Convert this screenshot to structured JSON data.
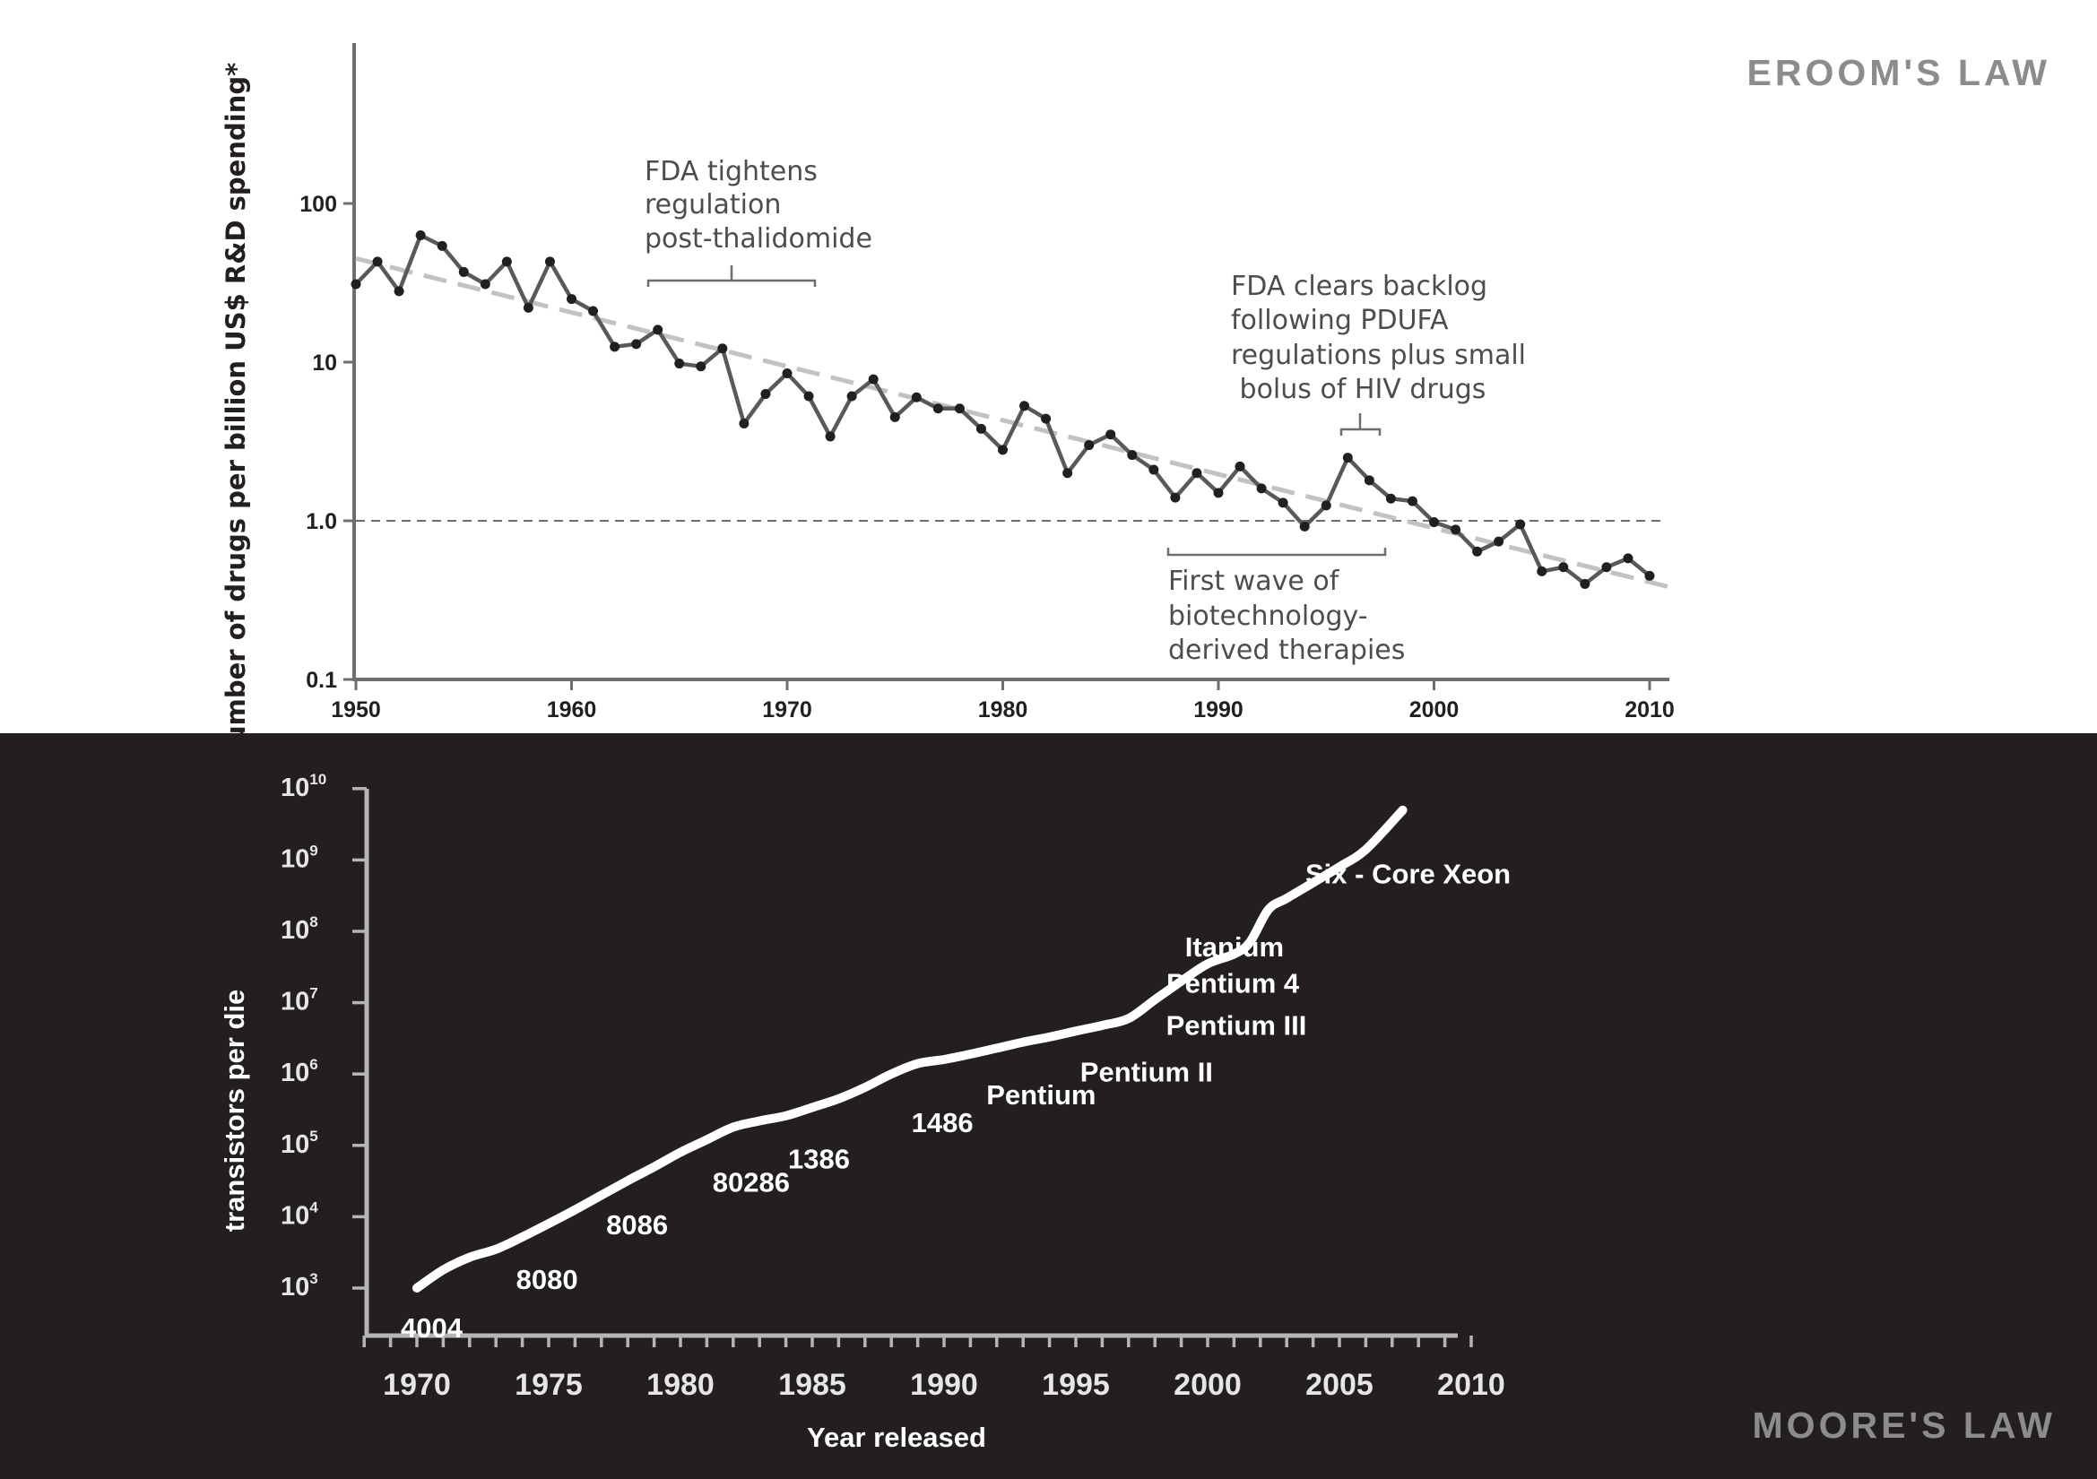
{
  "chart_data": [
    {
      "type": "line",
      "title": "EROOM'S LAW",
      "ylabel": "Number of drugs per billion US$ R&D spending*",
      "xlabel": "",
      "yscale": "log",
      "xlim": [
        1950,
        2011
      ],
      "ylim": [
        0.1,
        1000
      ],
      "xticks": [
        1950,
        1960,
        1970,
        1980,
        1990,
        2000,
        2010
      ],
      "xtick_labels": [
        "1950",
        "1960",
        "1970",
        "1980",
        "1990",
        "2000",
        "2010"
      ],
      "yticks": [
        100,
        10,
        1,
        0.1
      ],
      "ytick_labels": [
        "100",
        "10",
        "1.0",
        "0.1"
      ],
      "reference_line": {
        "y": 1.0,
        "style": "dashed"
      },
      "trend_line": {
        "x": [
          1950,
          2011
        ],
        "y": [
          45,
          0.38
        ],
        "style": "dashed"
      },
      "series": [
        {
          "name": "drugs per billion US$",
          "x": [
            1950,
            1951,
            1952,
            1953,
            1954,
            1955,
            1956,
            1957,
            1958,
            1959,
            1960,
            1961,
            1962,
            1963,
            1964,
            1965,
            1966,
            1967,
            1968,
            1969,
            1970,
            1971,
            1972,
            1973,
            1974,
            1975,
            1976,
            1977,
            1978,
            1979,
            1980,
            1981,
            1982,
            1983,
            1984,
            1985,
            1986,
            1987,
            1988,
            1989,
            1990,
            1991,
            1992,
            1993,
            1994,
            1995,
            1996,
            1997,
            1998,
            1999,
            2000,
            2001,
            2002,
            2003,
            2004,
            2005,
            2006,
            2007,
            2008,
            2009,
            2010
          ],
          "values": [
            31,
            43,
            28,
            63,
            54,
            37,
            31,
            43,
            22,
            43,
            25,
            21,
            12.5,
            13,
            16,
            9.8,
            9.4,
            12.2,
            4.1,
            6.3,
            8.5,
            6.1,
            3.4,
            6.1,
            7.8,
            4.5,
            6.0,
            5.1,
            5.1,
            3.8,
            2.8,
            5.3,
            4.4,
            2.0,
            3.0,
            3.5,
            2.6,
            2.1,
            1.4,
            2.0,
            1.5,
            2.2,
            1.6,
            1.3,
            0.92,
            1.25,
            2.5,
            1.8,
            1.38,
            1.33,
            0.98,
            0.88,
            0.64,
            0.74,
            0.95,
            0.48,
            0.51,
            0.4,
            0.51,
            0.58,
            0.45
          ]
        }
      ],
      "annotations": [
        {
          "lines": [
            "FDA tightens",
            "regulation",
            "post-thalidomide"
          ],
          "x_range": [
            1963.5,
            1971.5
          ]
        },
        {
          "lines": [
            "FDA clears backlog",
            "following PDUFA",
            "regulations plus small",
            " bolus of HIV drugs"
          ],
          "x_range": [
            1996,
            1998
          ]
        },
        {
          "lines": [
            "First wave of",
            "biotechnology-",
            "derived therapies"
          ],
          "x_range": [
            1988,
            1998
          ]
        }
      ]
    },
    {
      "type": "line",
      "title": "MOORE'S LAW",
      "xlabel": "Year released",
      "ylabel": "transistors per die",
      "yscale": "log",
      "xlim": [
        1968,
        2010
      ],
      "ylim": [
        1000,
        10000000000
      ],
      "xticks": [
        1970,
        1975,
        1980,
        1985,
        1990,
        1995,
        2000,
        2005,
        2010
      ],
      "xtick_labels": [
        "1970",
        "1975",
        "1980",
        "1985",
        "1990",
        "1995",
        "2000",
        "2005",
        "2010"
      ],
      "yticks": [
        {
          "base": "10",
          "exp": "3",
          "value": 1000
        },
        {
          "base": "10",
          "exp": "4",
          "value": 10000
        },
        {
          "base": "10",
          "exp": "5",
          "value": 100000
        },
        {
          "base": "10",
          "exp": "6",
          "value": 1000000
        },
        {
          "base": "10",
          "exp": "7",
          "value": 10000000
        },
        {
          "base": "10",
          "exp": "8",
          "value": 100000000
        },
        {
          "base": "10",
          "exp": "9",
          "value": 1000000000
        },
        {
          "base": "10",
          "exp": "10",
          "value": 10000000000
        }
      ],
      "series": [
        {
          "name": "transistors per die",
          "x": [
            1970,
            1971,
            1972,
            1973,
            1974,
            1975,
            1976,
            1977,
            1978,
            1979,
            1980,
            1981,
            1982,
            1983,
            1984,
            1985,
            1986,
            1987,
            1988,
            1989,
            1990,
            1991,
            1992,
            1993,
            1994,
            1995,
            1996,
            1997,
            1998,
            1999,
            2000,
            2001,
            2001.6,
            2002.3,
            2003,
            2004,
            2005,
            2006,
            2007.4
          ],
          "values": [
            1000,
            1800,
            2700,
            3500,
            5200,
            8000,
            12500,
            20000,
            32000,
            50000,
            80000,
            120000,
            180000,
            220000,
            260000,
            340000,
            450000,
            650000,
            1000000,
            1400000,
            1600000,
            1900000,
            2300000,
            2800000,
            3300000,
            4000000,
            4800000,
            6000000,
            11000000,
            20000000,
            35000000,
            48000000,
            70000000,
            200000000,
            290000000,
            480000000,
            800000000,
            1400000000,
            5000000000
          ]
        }
      ],
      "chip_labels": [
        {
          "name": "4004",
          "year": 1970,
          "value": 1000
        },
        {
          "name": "8080",
          "year": 1974,
          "value": 3000
        },
        {
          "name": "8086",
          "year": 1978,
          "value": 14000
        },
        {
          "name": "80286",
          "year": 1982,
          "value": 60000
        },
        {
          "name": "1386",
          "year": 1985,
          "value": 130000
        },
        {
          "name": "1486",
          "year": 1989,
          "value": 450000
        },
        {
          "name": "Pentium",
          "year": 1993,
          "value": 1000000
        },
        {
          "name": "Pentium II",
          "year": 1997,
          "value": 2500000
        },
        {
          "name": "Pentium III",
          "year": 1999,
          "value": 10000000
        },
        {
          "name": "Pentium 4",
          "year": 2000,
          "value": 40000000
        },
        {
          "name": "Itanium",
          "year": 2002,
          "value": 160000000
        },
        {
          "name": "Six - Core Xeon",
          "year": 2005,
          "value": 1500000000
        }
      ]
    }
  ]
}
